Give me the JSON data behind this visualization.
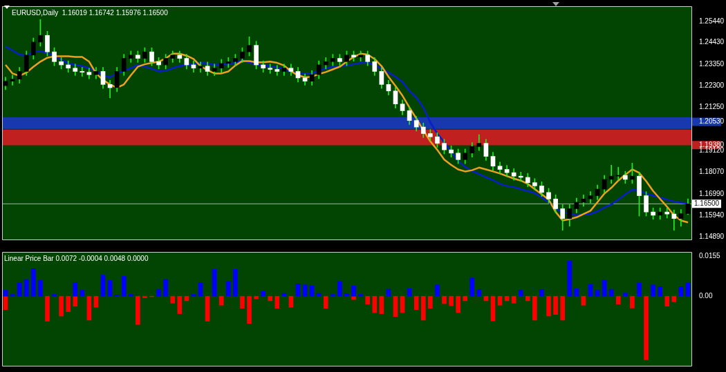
{
  "chart_data": [
    {
      "type": "candlestick",
      "title": "EURUSD,Daily  1.16019 1.16742 1.15976 1.16500",
      "categories": [
        null,
        null,
        null,
        null,
        null,
        null,
        null,
        null,
        null,
        null,
        null,
        null,
        null,
        null,
        null,
        null,
        null,
        null,
        null,
        null,
        null,
        null,
        null,
        null,
        null,
        null,
        null,
        null,
        null,
        null,
        null,
        null,
        null,
        null,
        null,
        null,
        null,
        null,
        null,
        null,
        null,
        null,
        null,
        null,
        null,
        null,
        null,
        null,
        null,
        null,
        null,
        null,
        null,
        null,
        null,
        null,
        null,
        null,
        null,
        null,
        null,
        null,
        null,
        null,
        null,
        null,
        null,
        null,
        null,
        null,
        null,
        null,
        null,
        null,
        null,
        null,
        null,
        null,
        null,
        null,
        null,
        null,
        null,
        null,
        null,
        null,
        null,
        null,
        null,
        null,
        null,
        null,
        null,
        null,
        null,
        null,
        null,
        null,
        null
      ],
      "ohlc": [
        [
          1.223,
          1.2272,
          1.221,
          1.2252
        ],
        [
          1.2252,
          1.2282,
          1.2232,
          1.2262
        ],
        [
          1.2262,
          1.232,
          1.2242,
          1.23
        ],
        [
          1.23,
          1.24,
          1.228,
          1.238
        ],
        [
          1.238,
          1.2464,
          1.236,
          1.2444
        ],
        [
          1.2444,
          1.2555,
          1.2424,
          1.2477
        ],
        [
          1.2477,
          1.2497,
          1.2376,
          1.2396
        ],
        [
          1.2396,
          1.2416,
          1.2328,
          1.2348
        ],
        [
          1.2348,
          1.2368,
          1.2312,
          1.2332
        ],
        [
          1.2332,
          1.2352,
          1.2296,
          1.2316
        ],
        [
          1.2316,
          1.2336,
          1.228,
          1.23
        ],
        [
          1.23,
          1.232,
          1.2276,
          1.2296
        ],
        [
          1.2296,
          1.2316,
          1.2264,
          1.2284
        ],
        [
          1.2284,
          1.232,
          1.2264,
          1.23
        ],
        [
          1.23,
          1.232,
          1.2216,
          1.2236
        ],
        [
          1.2236,
          1.2256,
          1.217,
          1.222
        ],
        [
          1.222,
          1.232,
          1.22,
          1.23
        ],
        [
          1.23,
          1.2384,
          1.228,
          1.2364
        ],
        [
          1.2364,
          1.24,
          1.2344,
          1.238
        ],
        [
          1.238,
          1.24,
          1.2344,
          1.2364
        ],
        [
          1.2364,
          1.2416,
          1.2344,
          1.2396
        ],
        [
          1.2396,
          1.2416,
          1.2328,
          1.2348
        ],
        [
          1.2348,
          1.2368,
          1.2312,
          1.2332
        ],
        [
          1.2332,
          1.2384,
          1.2312,
          1.2364
        ],
        [
          1.2364,
          1.24,
          1.2344,
          1.238
        ],
        [
          1.238,
          1.24,
          1.2344,
          1.2364
        ],
        [
          1.2364,
          1.2384,
          1.2312,
          1.2332
        ],
        [
          1.2332,
          1.2352,
          1.2296,
          1.2316
        ],
        [
          1.2316,
          1.2346,
          1.2296,
          1.2326
        ],
        [
          1.2326,
          1.2346,
          1.228,
          1.23
        ],
        [
          1.23,
          1.2336,
          1.228,
          1.2316
        ],
        [
          1.2316,
          1.2359,
          1.2296,
          1.2339
        ],
        [
          1.2339,
          1.2368,
          1.2319,
          1.2348
        ],
        [
          1.2348,
          1.2384,
          1.2328,
          1.2364
        ],
        [
          1.2364,
          1.2416,
          1.2344,
          1.2396
        ],
        [
          1.2396,
          1.247,
          1.2376,
          1.2428
        ],
        [
          1.2428,
          1.2448,
          1.2312,
          1.2332
        ],
        [
          1.2332,
          1.2352,
          1.2296,
          1.2316
        ],
        [
          1.2316,
          1.2336,
          1.229,
          1.231
        ],
        [
          1.231,
          1.233,
          1.228,
          1.23
        ],
        [
          1.23,
          1.2336,
          1.228,
          1.2316
        ],
        [
          1.2316,
          1.2336,
          1.228,
          1.23
        ],
        [
          1.23,
          1.232,
          1.2248,
          1.2268
        ],
        [
          1.2268,
          1.2288,
          1.2232,
          1.2252
        ],
        [
          1.2252,
          1.2304,
          1.2232,
          1.2284
        ],
        [
          1.2284,
          1.2352,
          1.2264,
          1.2332
        ],
        [
          1.2332,
          1.2368,
          1.2312,
          1.2348
        ],
        [
          1.2348,
          1.2384,
          1.2328,
          1.2364
        ],
        [
          1.2364,
          1.2384,
          1.2328,
          1.2348
        ],
        [
          1.2348,
          1.24,
          1.2328,
          1.238
        ],
        [
          1.238,
          1.24,
          1.235,
          1.237
        ],
        [
          1.237,
          1.24,
          1.235,
          1.238
        ],
        [
          1.238,
          1.24,
          1.2328,
          1.2348
        ],
        [
          1.2348,
          1.2368,
          1.228,
          1.23
        ],
        [
          1.23,
          1.232,
          1.2216,
          1.2236
        ],
        [
          1.2236,
          1.2256,
          1.2184,
          1.2204
        ],
        [
          1.2204,
          1.2224,
          1.212,
          1.214
        ],
        [
          1.214,
          1.216,
          1.2087,
          1.2107
        ],
        [
          1.2107,
          1.2127,
          1.2039,
          1.2059
        ],
        [
          1.2059,
          1.2079,
          1.2007,
          1.2027
        ],
        [
          1.2027,
          1.2047,
          1.1975,
          1.1995
        ],
        [
          1.1995,
          1.2015,
          1.1959,
          1.1979
        ],
        [
          1.1979,
          1.1999,
          1.1927,
          1.1947
        ],
        [
          1.1947,
          1.1967,
          1.1895,
          1.1915
        ],
        [
          1.1915,
          1.1935,
          1.1879,
          1.1899
        ],
        [
          1.1899,
          1.1919,
          1.1847,
          1.1867
        ],
        [
          1.1867,
          1.1919,
          1.1847,
          1.1899
        ],
        [
          1.1899,
          1.1951,
          1.1879,
          1.1931
        ],
        [
          1.1931,
          1.199,
          1.1911,
          1.1947
        ],
        [
          1.1947,
          1.1967,
          1.1863,
          1.1883
        ],
        [
          1.1883,
          1.1903,
          1.1815,
          1.1835
        ],
        [
          1.1835,
          1.1855,
          1.1799,
          1.1819
        ],
        [
          1.1819,
          1.1839,
          1.1783,
          1.1803
        ],
        [
          1.1803,
          1.1823,
          1.1766,
          1.1786
        ],
        [
          1.1786,
          1.1806,
          1.176,
          1.178
        ],
        [
          1.178,
          1.18,
          1.1734,
          1.1754
        ],
        [
          1.1754,
          1.1774,
          1.1718,
          1.1738
        ],
        [
          1.1738,
          1.1758,
          1.1686,
          1.1706
        ],
        [
          1.1706,
          1.1726,
          1.1654,
          1.1674
        ],
        [
          1.1674,
          1.1694,
          1.1606,
          1.1626
        ],
        [
          1.1626,
          1.1646,
          1.152,
          1.1578
        ],
        [
          1.1578,
          1.1646,
          1.154,
          1.1626
        ],
        [
          1.1626,
          1.1678,
          1.1606,
          1.1658
        ],
        [
          1.1658,
          1.1694,
          1.1638,
          1.1674
        ],
        [
          1.1674,
          1.171,
          1.1654,
          1.169
        ],
        [
          1.169,
          1.1742,
          1.167,
          1.1722
        ],
        [
          1.1722,
          1.179,
          1.1702,
          1.177
        ],
        [
          1.177,
          1.184,
          1.175,
          1.1786
        ],
        [
          1.1786,
          1.183,
          1.1766,
          1.179
        ],
        [
          1.179,
          1.181,
          1.175,
          1.177
        ],
        [
          1.177,
          1.185,
          1.175,
          1.1786
        ],
        [
          1.1786,
          1.1806,
          1.159,
          1.169
        ],
        [
          1.169,
          1.171,
          1.159,
          1.161
        ],
        [
          1.161,
          1.163,
          1.1574,
          1.1594
        ],
        [
          1.1594,
          1.163,
          1.1574,
          1.161
        ],
        [
          1.161,
          1.163,
          1.158,
          1.16
        ],
        [
          1.16,
          1.162,
          1.152,
          1.1578
        ],
        [
          1.1578,
          1.1622,
          1.154,
          1.1602
        ],
        [
          1.16019,
          1.16742,
          1.15976,
          1.165
        ]
      ],
      "series": [
        {
          "type": "line",
          "color": "#f0a020",
          "values": [
            1.2332,
            1.229,
            1.2278,
            1.2294,
            1.2323,
            1.2348,
            1.2367,
            1.2374,
            1.2374,
            1.2374,
            1.2371,
            1.2371,
            1.2348,
            1.229,
            1.2258,
            1.2236,
            1.222,
            1.2236,
            1.2281,
            1.2323,
            1.2335,
            1.2342,
            1.2348,
            1.2364,
            1.2387,
            1.2387,
            1.2377,
            1.2361,
            1.2326,
            1.2306,
            1.229,
            1.229,
            1.23,
            1.2329,
            1.2351,
            1.2351,
            1.2345,
            1.2345,
            1.2348,
            1.2342,
            1.2329,
            1.23,
            1.2281,
            1.2271,
            1.2274,
            1.2287,
            1.2297,
            1.231,
            1.2323,
            1.2348,
            1.2371,
            1.2387,
            1.2383,
            1.2361,
            1.2326,
            1.2274,
            1.2229,
            1.2181,
            1.2123,
            1.2069,
            1.2011,
            1.1957,
            1.1915,
            1.1867,
            1.1841,
            1.1819,
            1.1809,
            1.1815,
            1.1828,
            1.1819,
            1.1809,
            1.1799,
            1.1786,
            1.1774,
            1.1764,
            1.1748,
            1.1722,
            1.1697,
            1.1671,
            1.161,
            1.1568,
            1.1575,
            1.1584,
            1.16,
            1.1616,
            1.1658,
            1.17,
            1.1729,
            1.1764,
            1.1793,
            1.1819,
            1.1802,
            1.1761,
            1.1713,
            1.1674,
            1.1636,
            1.1594,
            1.1568,
            1.1559
          ]
        },
        {
          "type": "line",
          "color": "#0a1ecc",
          "values": [
            1.2422,
            1.2403,
            1.2383,
            1.2377,
            1.2396,
            1.24,
            1.239,
            1.2377,
            1.2358,
            1.2339,
            1.2332,
            1.2326,
            1.2316,
            1.23,
            1.2281,
            1.2271,
            1.229,
            1.2303,
            1.2316,
            1.2332,
            1.2323,
            1.2313,
            1.23,
            1.2303,
            1.2316,
            1.2326,
            1.2332,
            1.2335,
            1.2342,
            1.2339,
            1.2332,
            1.2335,
            1.2335,
            1.2342,
            1.2355,
            1.2345,
            1.2335,
            1.2329,
            1.2326,
            1.2319,
            1.2313,
            1.2297,
            1.229,
            1.229,
            1.229,
            1.2303,
            1.2316,
            1.2323,
            1.2326,
            1.2329,
            1.2335,
            1.2342,
            1.2342,
            1.2332,
            1.2313,
            1.2294,
            1.2274,
            1.2249,
            1.2204,
            1.2172,
            1.2123,
            1.205,
            1.1995,
            1.1953,
            1.1905,
            1.186,
            1.1831,
            1.1812,
            1.1796,
            1.178,
            1.1767,
            1.1748,
            1.1738,
            1.1732,
            1.1722,
            1.1713,
            1.1703,
            1.1681,
            1.1658,
            1.1626,
            1.161,
            1.16,
            1.1594,
            1.1597,
            1.16,
            1.1613,
            1.1632,
            1.1648,
            1.1671,
            1.1697,
            1.1719,
            1.1716,
            1.17,
            1.169,
            1.1681,
            1.1671,
            1.1661,
            1.1655,
            1.1652
          ]
        }
      ],
      "ylim": [
        1.1475,
        1.262
      ],
      "yticks": [
        {
          "value": 1.2544,
          "label": "1.25440"
        },
        {
          "value": 1.2443,
          "label": "1.24430"
        },
        {
          "value": 1.2335,
          "label": "1.23350"
        },
        {
          "value": 1.223,
          "label": "1.22300"
        },
        {
          "value": 1.2125,
          "label": "1.21250"
        },
        {
          "value": 1.2053,
          "label": "1.20530"
        },
        {
          "value": 1.1938,
          "label": "1.19380"
        },
        {
          "value": 1.1912,
          "label": "1.19120"
        },
        {
          "value": 1.1807,
          "label": "1.18070"
        },
        {
          "value": 1.1699,
          "label": "1.16990"
        },
        {
          "value": 1.1594,
          "label": "1.15940"
        },
        {
          "value": 1.1489,
          "label": "1.14890"
        }
      ],
      "bands": [
        {
          "axis": "y",
          "from": 1.2018,
          "to": 1.2075,
          "color": "#1838b0"
        },
        {
          "axis": "y",
          "from": 1.1937,
          "to": 1.2014,
          "color": "#c02020"
        }
      ],
      "ref_lines": [
        {
          "axis": "y",
          "value": 1.165,
          "label": "1.16500",
          "color": "#b0b0b0"
        }
      ],
      "legend": false,
      "grid": false
    },
    {
      "type": "bar",
      "title": "Linear Price Bar 0.0072 -0.0004 0.0048 0.0000",
      "categories": [
        null,
        null,
        null,
        null,
        null,
        null,
        null,
        null,
        null,
        null,
        null,
        null,
        null,
        null,
        null,
        null,
        null,
        null,
        null,
        null,
        null,
        null,
        null,
        null,
        null,
        null,
        null,
        null,
        null,
        null,
        null,
        null,
        null,
        null,
        null,
        null,
        null,
        null,
        null,
        null,
        null,
        null,
        null,
        null,
        null,
        null,
        null,
        null,
        null,
        null,
        null,
        null,
        null,
        null,
        null,
        null,
        null,
        null,
        null,
        null,
        null,
        null,
        null,
        null,
        null,
        null,
        null,
        null,
        null,
        null,
        null,
        null,
        null,
        null,
        null,
        null,
        null,
        null,
        null,
        null,
        null,
        null,
        null,
        null,
        null,
        null,
        null,
        null,
        null,
        null,
        null,
        null,
        null,
        null,
        null,
        null,
        null,
        null,
        null
      ],
      "series": [
        {
          "color": "#0000ff",
          "values": [
            0.0023,
            0.0007,
            0.0052,
            0.0065,
            0.0107,
            0.0061,
            null,
            0.0007,
            null,
            null,
            0.0052,
            0.0023,
            null,
            null,
            0.0082,
            0.0061,
            0.0005,
            0.0077,
            0.0007,
            null,
            null,
            null,
            0.0027,
            0.0065,
            null,
            null,
            null,
            0.0007,
            0.0052,
            null,
            0.0104,
            null,
            0.0057,
            0.0104,
            null,
            null,
            null,
            0.0019,
            null,
            null,
            0.0011,
            null,
            0.0048,
            0.0044,
            0.004,
            0.0011,
            null,
            0.0007,
            0.0057,
            0.001,
            0.004,
            0.0007,
            null,
            null,
            null,
            0.0027,
            null,
            null,
            0.0029,
            null,
            null,
            null,
            0.0044,
            null,
            null,
            null,
            null,
            0.0071,
            0.0026,
            null,
            null,
            null,
            null,
            null,
            0.0023,
            null,
            null,
            0.0026,
            null,
            null,
            null,
            0.0136,
            0.0029,
            null,
            0.0046,
            0.0023,
            0.0062,
            0.0027,
            null,
            0.0012,
            null,
            0.0051,
            null,
            0.0044,
            0.0037,
            null,
            null,
            0.0037,
            0.0052
          ]
        },
        {
          "color": "#ff0000",
          "values": [
            -0.0052,
            null,
            null,
            null,
            null,
            null,
            -0.0097,
            null,
            -0.0077,
            -0.006,
            -0.0039,
            null,
            -0.0093,
            -0.0043,
            null,
            null,
            null,
            null,
            null,
            -0.011,
            -0.0006,
            -0.0002,
            null,
            null,
            -0.0027,
            -0.0068,
            -0.0018,
            null,
            null,
            -0.0097,
            null,
            -0.0035,
            null,
            null,
            -0.0047,
            -0.0106,
            -0.001,
            null,
            -0.0018,
            -0.0047,
            null,
            -0.0043,
            null,
            null,
            null,
            null,
            -0.0047,
            null,
            null,
            null,
            -0.0013,
            null,
            -0.0031,
            -0.0064,
            -0.0068,
            null,
            -0.0079,
            -0.0064,
            null,
            -0.0052,
            -0.0093,
            -0.0047,
            null,
            -0.0029,
            -0.0037,
            -0.0064,
            -0.0018,
            null,
            null,
            -0.0018,
            -0.0096,
            -0.0035,
            -0.0018,
            -0.0027,
            null,
            -0.0018,
            -0.0093,
            null,
            -0.0077,
            -0.0071,
            -0.0093,
            null,
            null,
            -0.0035,
            null,
            null,
            null,
            null,
            -0.0031,
            null,
            -0.0046,
            null,
            -0.0247,
            null,
            null,
            -0.0039,
            -0.0022,
            null,
            null
          ]
        }
      ],
      "ylim": [
        -0.027,
        0.0172
      ],
      "yticks": [
        {
          "value": 0.0155,
          "label": "0.0155"
        },
        {
          "value": 0,
          "label": "0.00"
        }
      ],
      "legend": false,
      "grid": false
    }
  ]
}
